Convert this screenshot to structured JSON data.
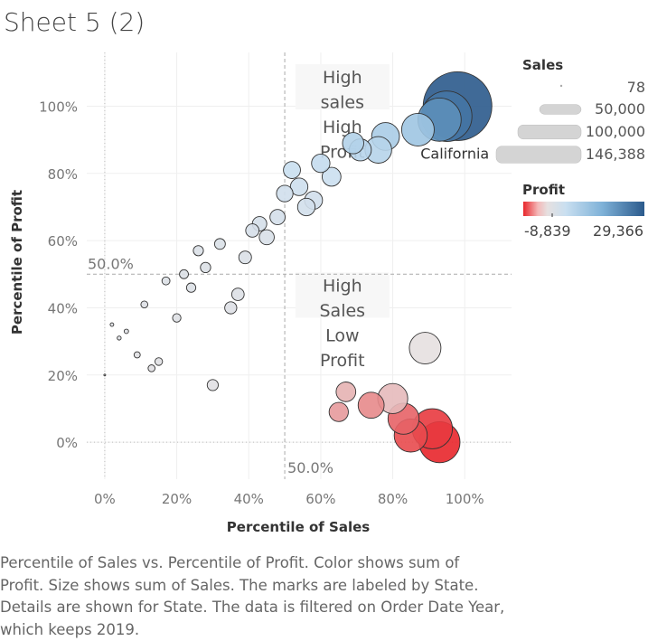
{
  "page": {
    "title": "Sheet 5 (2)",
    "caption": "Percentile of Sales vs. Percentile of Profit.  Color shows sum of Profit.  Size shows sum of Sales.  The marks are labeled by State. Details are shown for State. The data is filtered on Order Date Year, which keeps 2019."
  },
  "legend": {
    "sales_title": "Sales",
    "sales_sizes": [
      "78",
      "50,000",
      "100,000",
      "146,388"
    ],
    "profit_title": "Profit",
    "profit_min": "-8,839",
    "profit_max": "29,366",
    "colors": {
      "neg": "#e8262b",
      "neutral": "#e6e0e0",
      "low": "#c9dff0",
      "mid": "#7fb2d8",
      "high": "#2b5a8c"
    }
  },
  "chart_data": {
    "type": "scatter",
    "title": "Sheet 5 (2)",
    "xlabel": "Percentile of Sales",
    "ylabel": "Percentile of Profit",
    "xlim": [
      -0.05,
      1.13
    ],
    "ylim": [
      -0.11,
      1.16
    ],
    "xticks": [
      "0%",
      "20%",
      "40%",
      "60%",
      "80%",
      "100%"
    ],
    "yticks": [
      "0%",
      "20%",
      "40%",
      "60%",
      "80%",
      "100%"
    ],
    "reference_lines": {
      "x": 0.5,
      "y": 0.5,
      "x_label": "50.0%",
      "y_label": "50.0%"
    },
    "annotations": [
      {
        "lines": [
          "High",
          "sales",
          "High",
          "Profit"
        ]
      },
      {
        "lines": [
          "High",
          "Sales",
          "Low",
          "Profit"
        ]
      }
    ],
    "mark_label": "California",
    "size_encoding": "Sales",
    "color_encoding": "Profit",
    "points": [
      {
        "x": 0.0,
        "y": 0.2,
        "sales": 78,
        "profit": 0
      },
      {
        "x": 0.02,
        "y": 0.35,
        "sales": 400,
        "profit": 40
      },
      {
        "x": 0.04,
        "y": 0.31,
        "sales": 500,
        "profit": 30
      },
      {
        "x": 0.06,
        "y": 0.33,
        "sales": 600,
        "profit": 35
      },
      {
        "x": 0.09,
        "y": 0.26,
        "sales": 1200,
        "profit": 20
      },
      {
        "x": 0.11,
        "y": 0.41,
        "sales": 1500,
        "profit": 60
      },
      {
        "x": 0.13,
        "y": 0.22,
        "sales": 1500,
        "profit": 15
      },
      {
        "x": 0.15,
        "y": 0.24,
        "sales": 1800,
        "profit": 18
      },
      {
        "x": 0.17,
        "y": 0.48,
        "sales": 2000,
        "profit": 100
      },
      {
        "x": 0.2,
        "y": 0.37,
        "sales": 2200,
        "profit": 50
      },
      {
        "x": 0.22,
        "y": 0.5,
        "sales": 2500,
        "profit": 120
      },
      {
        "x": 0.24,
        "y": 0.46,
        "sales": 2700,
        "profit": 90
      },
      {
        "x": 0.26,
        "y": 0.57,
        "sales": 3200,
        "profit": 200
      },
      {
        "x": 0.28,
        "y": 0.52,
        "sales": 3300,
        "profit": 150
      },
      {
        "x": 0.3,
        "y": 0.17,
        "sales": 3800,
        "profit": 10
      },
      {
        "x": 0.32,
        "y": 0.59,
        "sales": 3600,
        "profit": 250
      },
      {
        "x": 0.35,
        "y": 0.4,
        "sales": 4500,
        "profit": 60
      },
      {
        "x": 0.37,
        "y": 0.44,
        "sales": 4800,
        "profit": 80
      },
      {
        "x": 0.39,
        "y": 0.55,
        "sales": 5000,
        "profit": 200
      },
      {
        "x": 0.41,
        "y": 0.63,
        "sales": 5500,
        "profit": 400
      },
      {
        "x": 0.43,
        "y": 0.65,
        "sales": 6500,
        "profit": 500
      },
      {
        "x": 0.45,
        "y": 0.61,
        "sales": 7000,
        "profit": 300
      },
      {
        "x": 0.48,
        "y": 0.67,
        "sales": 7200,
        "profit": 600
      },
      {
        "x": 0.5,
        "y": 0.74,
        "sales": 8500,
        "profit": 1200
      },
      {
        "x": 0.52,
        "y": 0.81,
        "sales": 9000,
        "profit": 2500
      },
      {
        "x": 0.54,
        "y": 0.76,
        "sales": 9500,
        "profit": 1500
      },
      {
        "x": 0.56,
        "y": 0.7,
        "sales": 9500,
        "profit": 800
      },
      {
        "x": 0.58,
        "y": 0.72,
        "sales": 10000,
        "profit": 1000
      },
      {
        "x": 0.6,
        "y": 0.83,
        "sales": 10500,
        "profit": 3000
      },
      {
        "x": 0.63,
        "y": 0.79,
        "sales": 11000,
        "profit": 2000
      },
      {
        "x": 0.65,
        "y": 0.09,
        "sales": 11500,
        "profit": -2200
      },
      {
        "x": 0.67,
        "y": 0.15,
        "sales": 12000,
        "profit": -1200
      },
      {
        "x": 0.69,
        "y": 0.89,
        "sales": 14000,
        "profit": 4500
      },
      {
        "x": 0.71,
        "y": 0.87,
        "sales": 15000,
        "profit": 4000
      },
      {
        "x": 0.74,
        "y": 0.11,
        "sales": 21000,
        "profit": -3000
      },
      {
        "x": 0.76,
        "y": 0.87,
        "sales": 22000,
        "profit": 4200
      },
      {
        "x": 0.78,
        "y": 0.91,
        "sales": 24000,
        "profit": 5500
      },
      {
        "x": 0.8,
        "y": 0.13,
        "sales": 28000,
        "profit": -900
      },
      {
        "x": 0.83,
        "y": 0.07,
        "sales": 30000,
        "profit": -5000
      },
      {
        "x": 0.85,
        "y": 0.02,
        "sales": 34000,
        "profit": -6500
      },
      {
        "x": 0.87,
        "y": 0.93,
        "sales": 33000,
        "profit": 7000
      },
      {
        "x": 0.89,
        "y": 0.28,
        "sales": 31000,
        "profit": 0
      },
      {
        "x": 0.91,
        "y": 0.04,
        "sales": 50000,
        "profit": -7500
      },
      {
        "x": 0.93,
        "y": 0.0,
        "sales": 52000,
        "profit": -8839
      },
      {
        "x": 0.93,
        "y": 0.96,
        "sales": 58000,
        "profit": 18000
      },
      {
        "x": 0.95,
        "y": 0.97,
        "sales": 79000,
        "profit": 23000
      },
      {
        "x": 0.98,
        "y": 1.0,
        "sales": 146388,
        "profit": 29366,
        "label": "California"
      }
    ]
  }
}
